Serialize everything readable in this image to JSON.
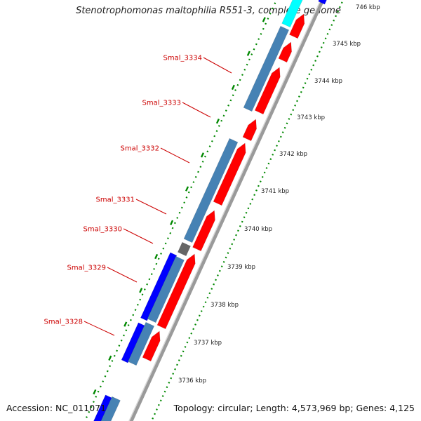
{
  "title": "Stenotrophomonas maltophilia R551-3, complete genome",
  "accession": "Accession: NC_011071",
  "topology": "Topology: circular; Length: 4,573,969 bp; Genes: 4,125",
  "colors": {
    "cds_forward": "#ff0000",
    "cds_reverse": "#0000ff",
    "blast_hit": "#4682b4",
    "cyan_feature": "#00ffff",
    "gc_dots": "#008800",
    "backbone": "#808080",
    "gene_label": "#cc0000"
  },
  "gene_labels": [
    "Smal_3334",
    "Smal_3333",
    "Smal_3332",
    "Smal_3331",
    "Smal_3330",
    "Smal_3329",
    "Smal_3328"
  ],
  "scale_ticks": [
    "746 kbp",
    "3745 kbp",
    "3744 kbp",
    "3743 kbp",
    "3742 kbp",
    "3741 kbp",
    "3740 kbp",
    "3739 kbp",
    "3738 kbp",
    "3737 kbp",
    "3736 kbp"
  ]
}
